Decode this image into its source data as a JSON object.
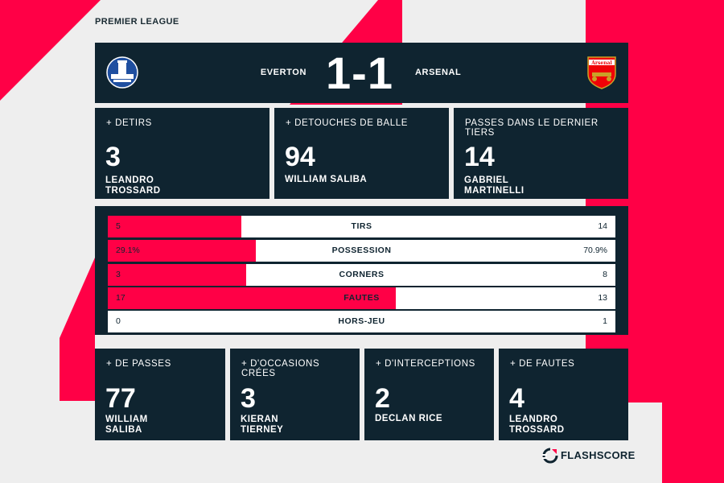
{
  "competition": "PREMIER LEAGUE",
  "match": {
    "home_team": "EVERTON",
    "away_team": "ARSENAL",
    "score": "1-1",
    "home_crest_icon": "everton-crest-icon",
    "away_crest_icon": "arsenal-crest-icon",
    "away_crest_text": "Arsenal"
  },
  "top_stats": [
    {
      "title": "+ DETIRS",
      "value": "3",
      "player_line1": "LEANDRO",
      "player_line2": "TROSSARD"
    },
    {
      "title": "+ DETOUCHES DE BALLE",
      "value": "94",
      "player_line1": "WILLIAM SALIBA",
      "player_line2": ""
    },
    {
      "title": "PASSES DANS LE DERNIER TIERS",
      "value": "14",
      "player_line1": "GABRIEL",
      "player_line2": "MARTINELLI"
    }
  ],
  "comparison": [
    {
      "label": "TIRS",
      "home": "5",
      "away": "14",
      "home_share": 0.263
    },
    {
      "label": "POSSESSION",
      "home": "29.1%",
      "away": "70.9%",
      "home_share": 0.291
    },
    {
      "label": "CORNERS",
      "home": "3",
      "away": "8",
      "home_share": 0.273
    },
    {
      "label": "FAUTES",
      "home": "17",
      "away": "13",
      "home_share": 0.567
    },
    {
      "label": "HORS-JEU",
      "home": "0",
      "away": "1",
      "home_share": 0
    }
  ],
  "bottom_stats": [
    {
      "title": "+ DE PASSES",
      "value": "77",
      "player_line1": "WILLIAM",
      "player_line2": "SALIBA"
    },
    {
      "title": "+ D'OCCASIONS CRÉES",
      "value": "3",
      "player_line1": "KIERAN",
      "player_line2": "TIERNEY"
    },
    {
      "title": "+ D'INTERCEPTIONS",
      "value": "2",
      "player_line1": "DECLAN RICE",
      "player_line2": ""
    },
    {
      "title": "+ DE FAUTES",
      "value": "4",
      "player_line1": "LEANDRO",
      "player_line2": "TROSSARD"
    }
  ],
  "brand": {
    "name": "FLASHSCORE",
    "icon": "flashscore-logo-icon"
  },
  "colors": {
    "accent": "#ff0046",
    "panel": "#0f2430",
    "background": "#eeeeee"
  }
}
